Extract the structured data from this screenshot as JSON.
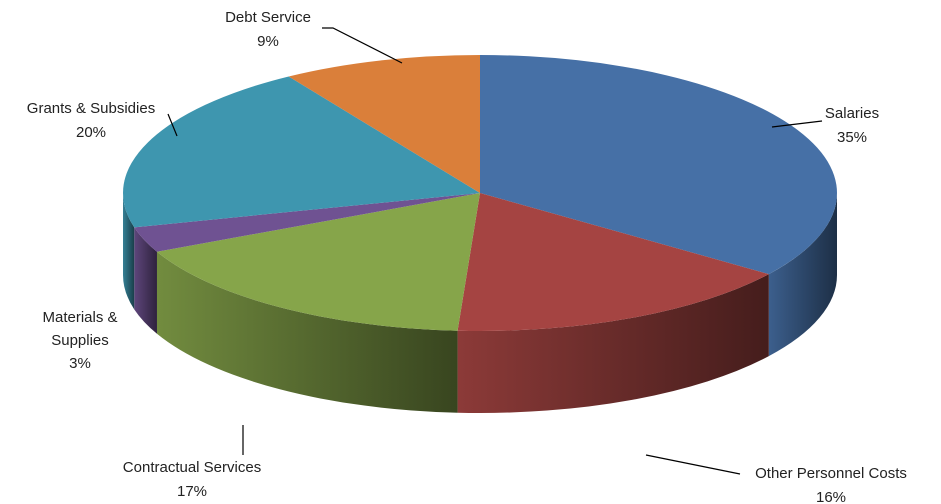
{
  "chart_data": {
    "type": "pie",
    "style": "3d-exploded-tilted",
    "title": "",
    "legend": "none",
    "slices": [
      {
        "name": "Salaries",
        "value": 35,
        "label": "35%",
        "color": "#4670A6"
      },
      {
        "name": "Other Personnel Costs",
        "value": 16,
        "label": "16%",
        "color": "#A54442"
      },
      {
        "name": "Contractual Services",
        "value": 17,
        "label": "17%",
        "color": "#86A54A"
      },
      {
        "name": "Materials & Supplies",
        "value": 3,
        "label": "3%",
        "color": "#6F5292"
      },
      {
        "name": "Grants & Subsidies",
        "value": 20,
        "label": "20%",
        "color": "#3E96AF"
      },
      {
        "name": "Debt Service",
        "value": 9,
        "label": "9%",
        "color": "#DA7F3A"
      }
    ]
  }
}
